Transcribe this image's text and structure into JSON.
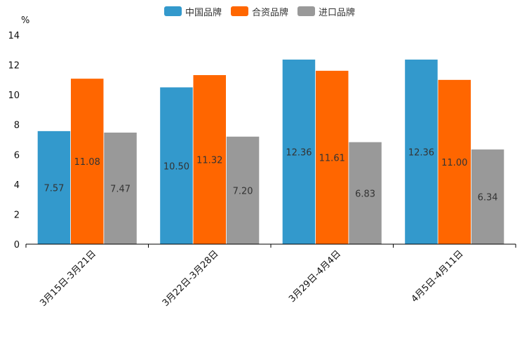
{
  "chart_data": {
    "type": "bar",
    "title": "",
    "xlabel": "",
    "ylabel": "%",
    "ylim": [
      0,
      14
    ],
    "yticks": [
      0,
      2,
      4,
      6,
      8,
      10,
      12,
      14
    ],
    "ytick_labels": [
      "0",
      "2",
      "4",
      "6",
      "8",
      "10",
      "12",
      "14"
    ],
    "grid": false,
    "legend_position": "top-center",
    "categories": [
      "3月15日-3月21日",
      "3月22日-3月28日",
      "3月29日-4月4日",
      "4月5日-4月11日"
    ],
    "series": [
      {
        "name": "中国品牌",
        "color": "#3399cc",
        "values": [
          7.57,
          10.5,
          12.36,
          12.36
        ],
        "labels": [
          "7.57",
          "10.50",
          "12.36",
          "12.36"
        ]
      },
      {
        "name": "合资品牌",
        "color": "#ff6600",
        "values": [
          11.08,
          11.32,
          11.61,
          11.0
        ],
        "labels": [
          "11.08",
          "11.32",
          "11.61",
          "11.00"
        ]
      },
      {
        "name": "进口品牌",
        "color": "#999999",
        "values": [
          7.47,
          7.2,
          6.83,
          6.34
        ],
        "labels": [
          "7.47",
          "7.20",
          "6.83",
          "6.34"
        ]
      }
    ]
  }
}
